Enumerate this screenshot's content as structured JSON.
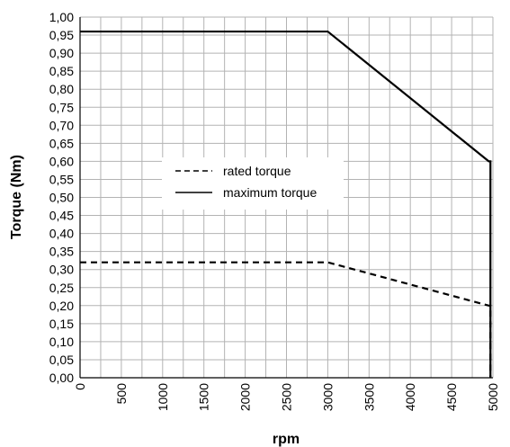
{
  "chart_data": {
    "type": "line",
    "xlabel": "rpm",
    "ylabel": "Torque (Nm)",
    "xlim": [
      0,
      5000
    ],
    "ylim": [
      0,
      1.0
    ],
    "x_ticks": [
      "0",
      "500",
      "1000",
      "1500",
      "2000",
      "2500",
      "3000",
      "3500",
      "4000",
      "4500",
      "5000"
    ],
    "y_ticks": [
      "0,00",
      "0,05",
      "0,10",
      "0,15",
      "0,20",
      "0,25",
      "0,30",
      "0,35",
      "0,40",
      "0,45",
      "0,50",
      "0,55",
      "0,60",
      "0,65",
      "0,70",
      "0,75",
      "0,80",
      "0,85",
      "0,90",
      "0,95",
      "1,00"
    ],
    "grid": true,
    "legend_position": "center-left",
    "series": [
      {
        "name": "rated torque",
        "style": "dashed",
        "color": "#000000",
        "points": [
          [
            0,
            0.32
          ],
          [
            3000,
            0.32
          ],
          [
            4950,
            0.2
          ],
          [
            4970,
            0.2
          ],
          [
            4970,
            0.0
          ]
        ]
      },
      {
        "name": "maximum torque",
        "style": "solid",
        "color": "#000000",
        "points": [
          [
            0,
            0.96
          ],
          [
            3000,
            0.96
          ],
          [
            4950,
            0.6
          ],
          [
            4970,
            0.6
          ],
          [
            4970,
            0.0
          ]
        ]
      }
    ]
  }
}
